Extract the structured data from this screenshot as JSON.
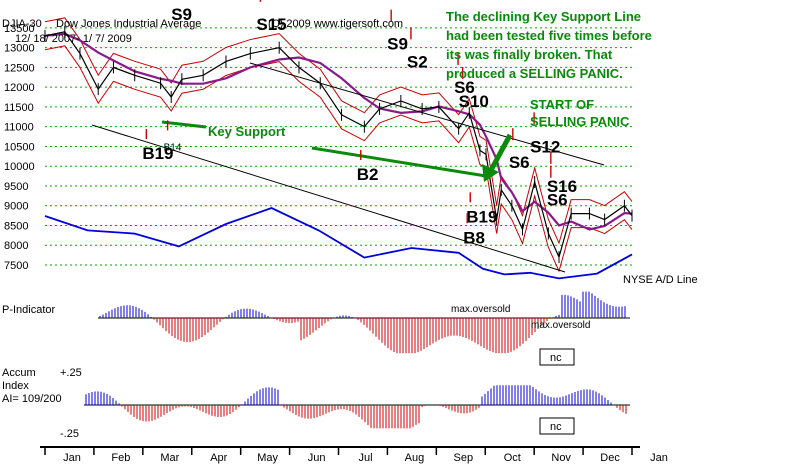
{
  "header": {
    "symbol": "DJIA-30",
    "name": "Dow Jones Industrial Average",
    "copyright": "(C) 2009 www.tigersoft.com",
    "date_range": "12/ 18/ 2007- 1/ 7/ 2009"
  },
  "annotations": {
    "commentary": [
      "The declining Key Support Line",
      "had been tested five times before",
      "its was finally broken.  That",
      "produced a SELLING PANIC."
    ],
    "key_support": "Key Support",
    "panic": [
      "START OF",
      "SELLING PANIC"
    ]
  },
  "indicators": {
    "ad_line": "NYSE A/D Line",
    "p_indicator": "P-Indicator",
    "max_oversold_1": "max.oversold",
    "max_oversold_2": "max.oversold",
    "nc_1": "nc",
    "nc_2": "nc",
    "accum": [
      "Accum",
      "Index",
      "AI= 109/200"
    ],
    "accum_hi": "+.25",
    "accum_lo": "-.25"
  },
  "colors": {
    "price": "#000000",
    "band": "#cc0000",
    "ma": "#8a1a8a",
    "ad_line": "#0000dd",
    "positive": "#0000cc",
    "negative": "#cc0000",
    "green": "#0a8a0a",
    "grid": "#00aa00"
  },
  "signals": [
    {
      "label": "S9",
      "date": "2008-03-10",
      "y": 13700,
      "big": true
    },
    {
      "label": "S15",
      "date": "2008-05-05",
      "y": 13450,
      "big": true
    },
    {
      "label": "S9",
      "date": "2008-07-30",
      "y": 12950,
      "big": true
    },
    {
      "label": "S2",
      "date": "2008-08-12",
      "y": 12500,
      "big": true
    },
    {
      "label": "S6",
      "date": "2008-09-12",
      "y": 11850,
      "big": true
    },
    {
      "label": "S10",
      "date": "2008-09-15",
      "y": 11500,
      "big": true
    },
    {
      "label": "S12",
      "date": "2008-11-01",
      "y": 10350,
      "big": true
    },
    {
      "label": "S6",
      "date": "2008-10-18",
      "y": 9950,
      "big": true
    },
    {
      "label": "S16",
      "date": "2008-11-12",
      "y": 9350,
      "big": true
    },
    {
      "label": "S6",
      "date": "2008-11-12",
      "y": 9000,
      "big": true
    },
    {
      "label": "B19",
      "date": "2008-02-20",
      "y": 10180,
      "big": true
    },
    {
      "label": "B14",
      "date": "2008-03-05",
      "y": 10400,
      "big": false
    },
    {
      "label": "B2",
      "date": "2008-07-10",
      "y": 9650,
      "big": true
    },
    {
      "label": "B19",
      "date": "2008-09-20",
      "y": 8580,
      "big": true
    },
    {
      "label": "B8",
      "date": "2008-09-18",
      "y": 8050,
      "big": true
    }
  ],
  "chart_data": {
    "type": "line",
    "title": "Dow Jones Industrial Average",
    "xlabel": "",
    "ylabel": "",
    "ylim": [
      7500,
      13750
    ],
    "yticks": [
      7500,
      8000,
      8500,
      9000,
      9500,
      10000,
      10500,
      11000,
      11500,
      12000,
      12500,
      13000,
      13500
    ],
    "months": [
      "Jan",
      "Feb",
      "Mar",
      "Apr",
      "May",
      "Jun",
      "Jul",
      "Aug",
      "Sep",
      "Oct",
      "Nov",
      "Dec",
      "Jan"
    ],
    "grid": true,
    "series": [
      {
        "name": "DJIA-30",
        "x": [
          "2007-12-18",
          "2007-12-31",
          "2008-01-10",
          "2008-01-22",
          "2008-02-01",
          "2008-02-15",
          "2008-03-03",
          "2008-03-10",
          "2008-03-17",
          "2008-03-31",
          "2008-04-15",
          "2008-05-01",
          "2008-05-20",
          "2008-06-02",
          "2008-06-16",
          "2008-06-30",
          "2008-07-15",
          "2008-07-25",
          "2008-08-08",
          "2008-08-22",
          "2008-09-02",
          "2008-09-15",
          "2008-09-22",
          "2008-09-29",
          "2008-10-03",
          "2008-10-10",
          "2008-10-13",
          "2008-10-20",
          "2008-10-27",
          "2008-11-04",
          "2008-11-13",
          "2008-11-20",
          "2008-11-28",
          "2008-12-10",
          "2008-12-20",
          "2009-01-02",
          "2009-01-07"
        ],
        "y": [
          13300,
          13400,
          12850,
          11950,
          12500,
          12300,
          12100,
          11750,
          12200,
          12300,
          12650,
          12850,
          13000,
          12500,
          12100,
          11300,
          11000,
          11450,
          11650,
          11450,
          11500,
          10950,
          11350,
          10400,
          10300,
          8650,
          9400,
          9000,
          8400,
          9600,
          8300,
          7700,
          8800,
          8800,
          8650,
          9000,
          8750
        ]
      },
      {
        "name": "NYSE A/D Line",
        "x": [
          "2007-12-18",
          "2008-01-15",
          "2008-02-15",
          "2008-03-15",
          "2008-04-15",
          "2008-05-15",
          "2008-06-15",
          "2008-07-15",
          "2008-08-15",
          "2008-09-15",
          "2008-10-01",
          "2008-10-15",
          "2008-11-01",
          "2008-11-20",
          "2008-12-15",
          "2009-01-07"
        ],
        "y": [
          0.8,
          0.62,
          0.58,
          0.42,
          0.7,
          0.9,
          0.62,
          0.28,
          0.4,
          0.34,
          0.14,
          0.07,
          0.09,
          0.02,
          0.08,
          0.32
        ]
      }
    ]
  }
}
